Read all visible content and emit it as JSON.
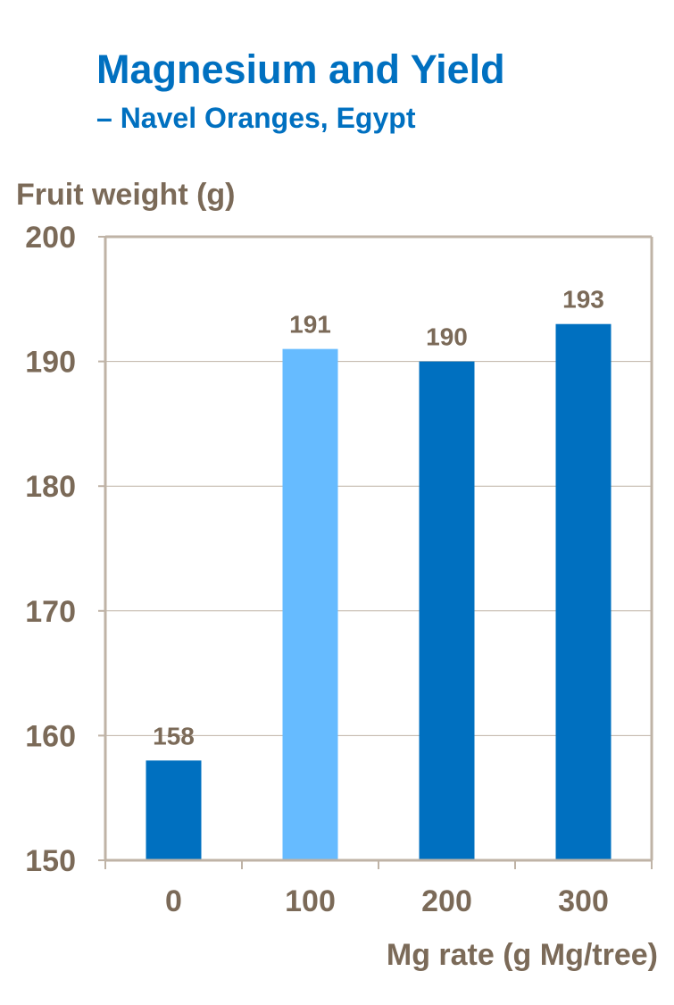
{
  "title": "Magnesium and Yield",
  "subtitle": "– Navel Oranges, Egypt",
  "colors": {
    "title": "#0070C0",
    "axis_text": "#7B6A58",
    "axis_line": "#BFB3A6",
    "bar_dark": "#0070C0",
    "bar_light": "#66BBFF"
  },
  "chart_data": {
    "type": "bar",
    "ylabel": "Fruit weight (g)",
    "xlabel": "Mg rate (g Mg/tree)",
    "categories": [
      "0",
      "100",
      "200",
      "300"
    ],
    "values": [
      158,
      191,
      190,
      193
    ],
    "bar_colors": [
      "#0070C0",
      "#66BBFF",
      "#0070C0",
      "#0070C0"
    ],
    "data_labels": [
      "158",
      "191",
      "190",
      "193"
    ],
    "ylim": [
      150,
      200
    ],
    "yticks": [
      150,
      160,
      170,
      180,
      190,
      200
    ],
    "ytick_labels": [
      "150",
      "160",
      "170",
      "180",
      "190",
      "200"
    ],
    "grid": true,
    "legend": "none"
  }
}
